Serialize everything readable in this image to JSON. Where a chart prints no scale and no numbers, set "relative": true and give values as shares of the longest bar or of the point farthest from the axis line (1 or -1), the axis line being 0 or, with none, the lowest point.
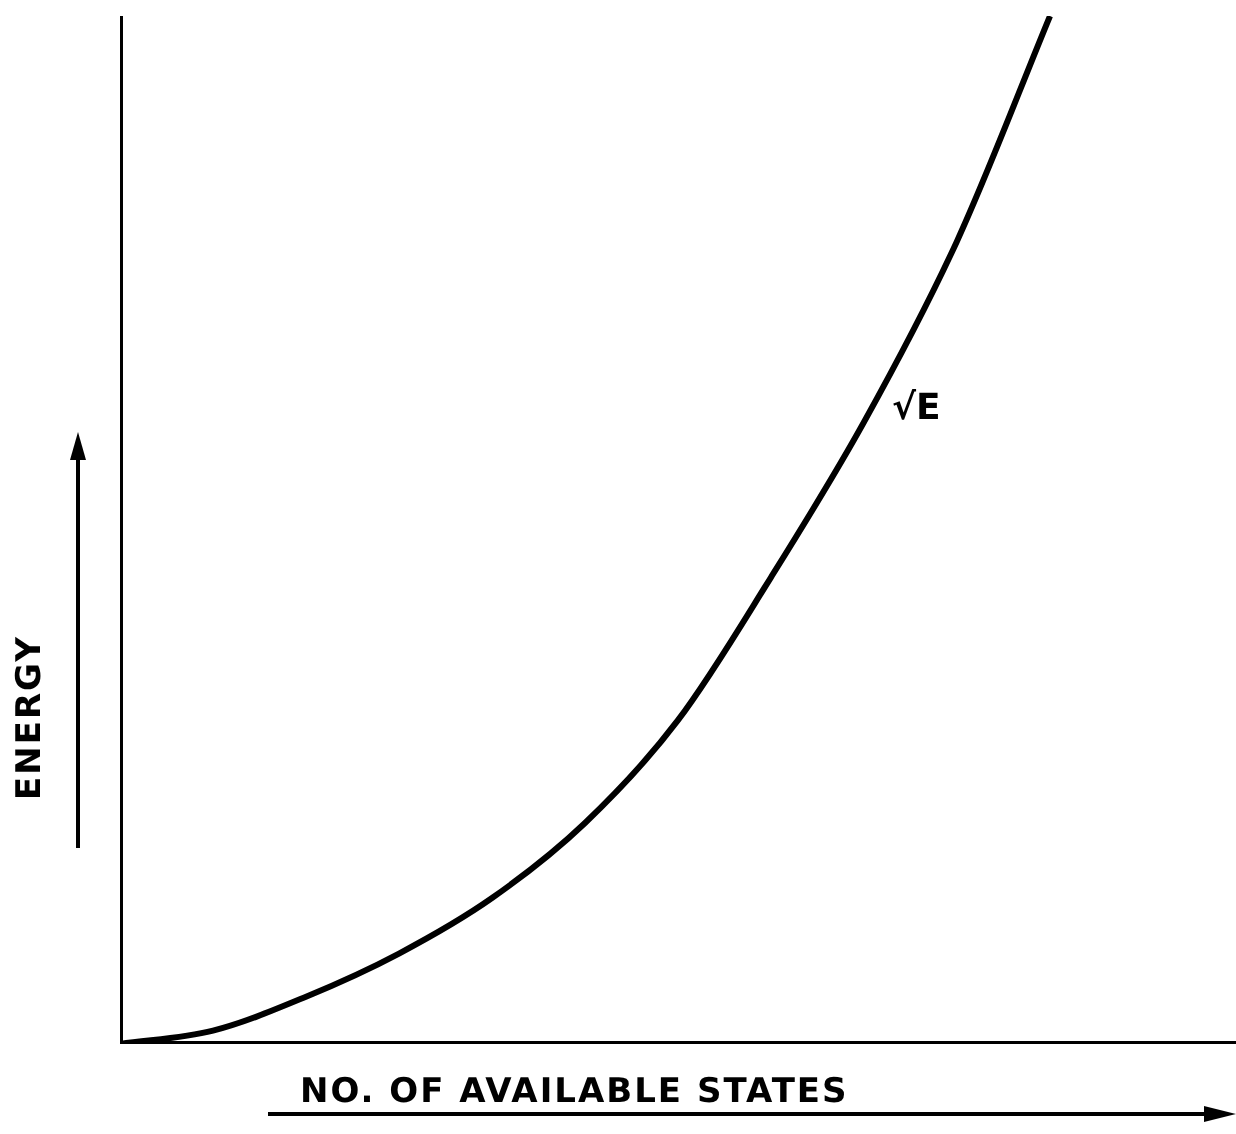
{
  "chart_data": {
    "type": "line",
    "xlabel": "NO. OF AVAILABLE STATES",
    "ylabel": "ENERGY",
    "relative": true,
    "grid": false,
    "legend": false,
    "marker": "none",
    "line_style": "solid",
    "categories": [
      null,
      null,
      null,
      null,
      null,
      null,
      null,
      null,
      null,
      null,
      null,
      null,
      null
    ],
    "series": [
      {
        "name": "√E",
        "color": "#000000",
        "values": [
          0,
          0.013,
          0.046,
          0.088,
          0.142,
          0.215,
          0.315,
          0.454,
          0.605,
          0.781,
          1,
          null,
          null
        ]
      }
    ]
  }
}
